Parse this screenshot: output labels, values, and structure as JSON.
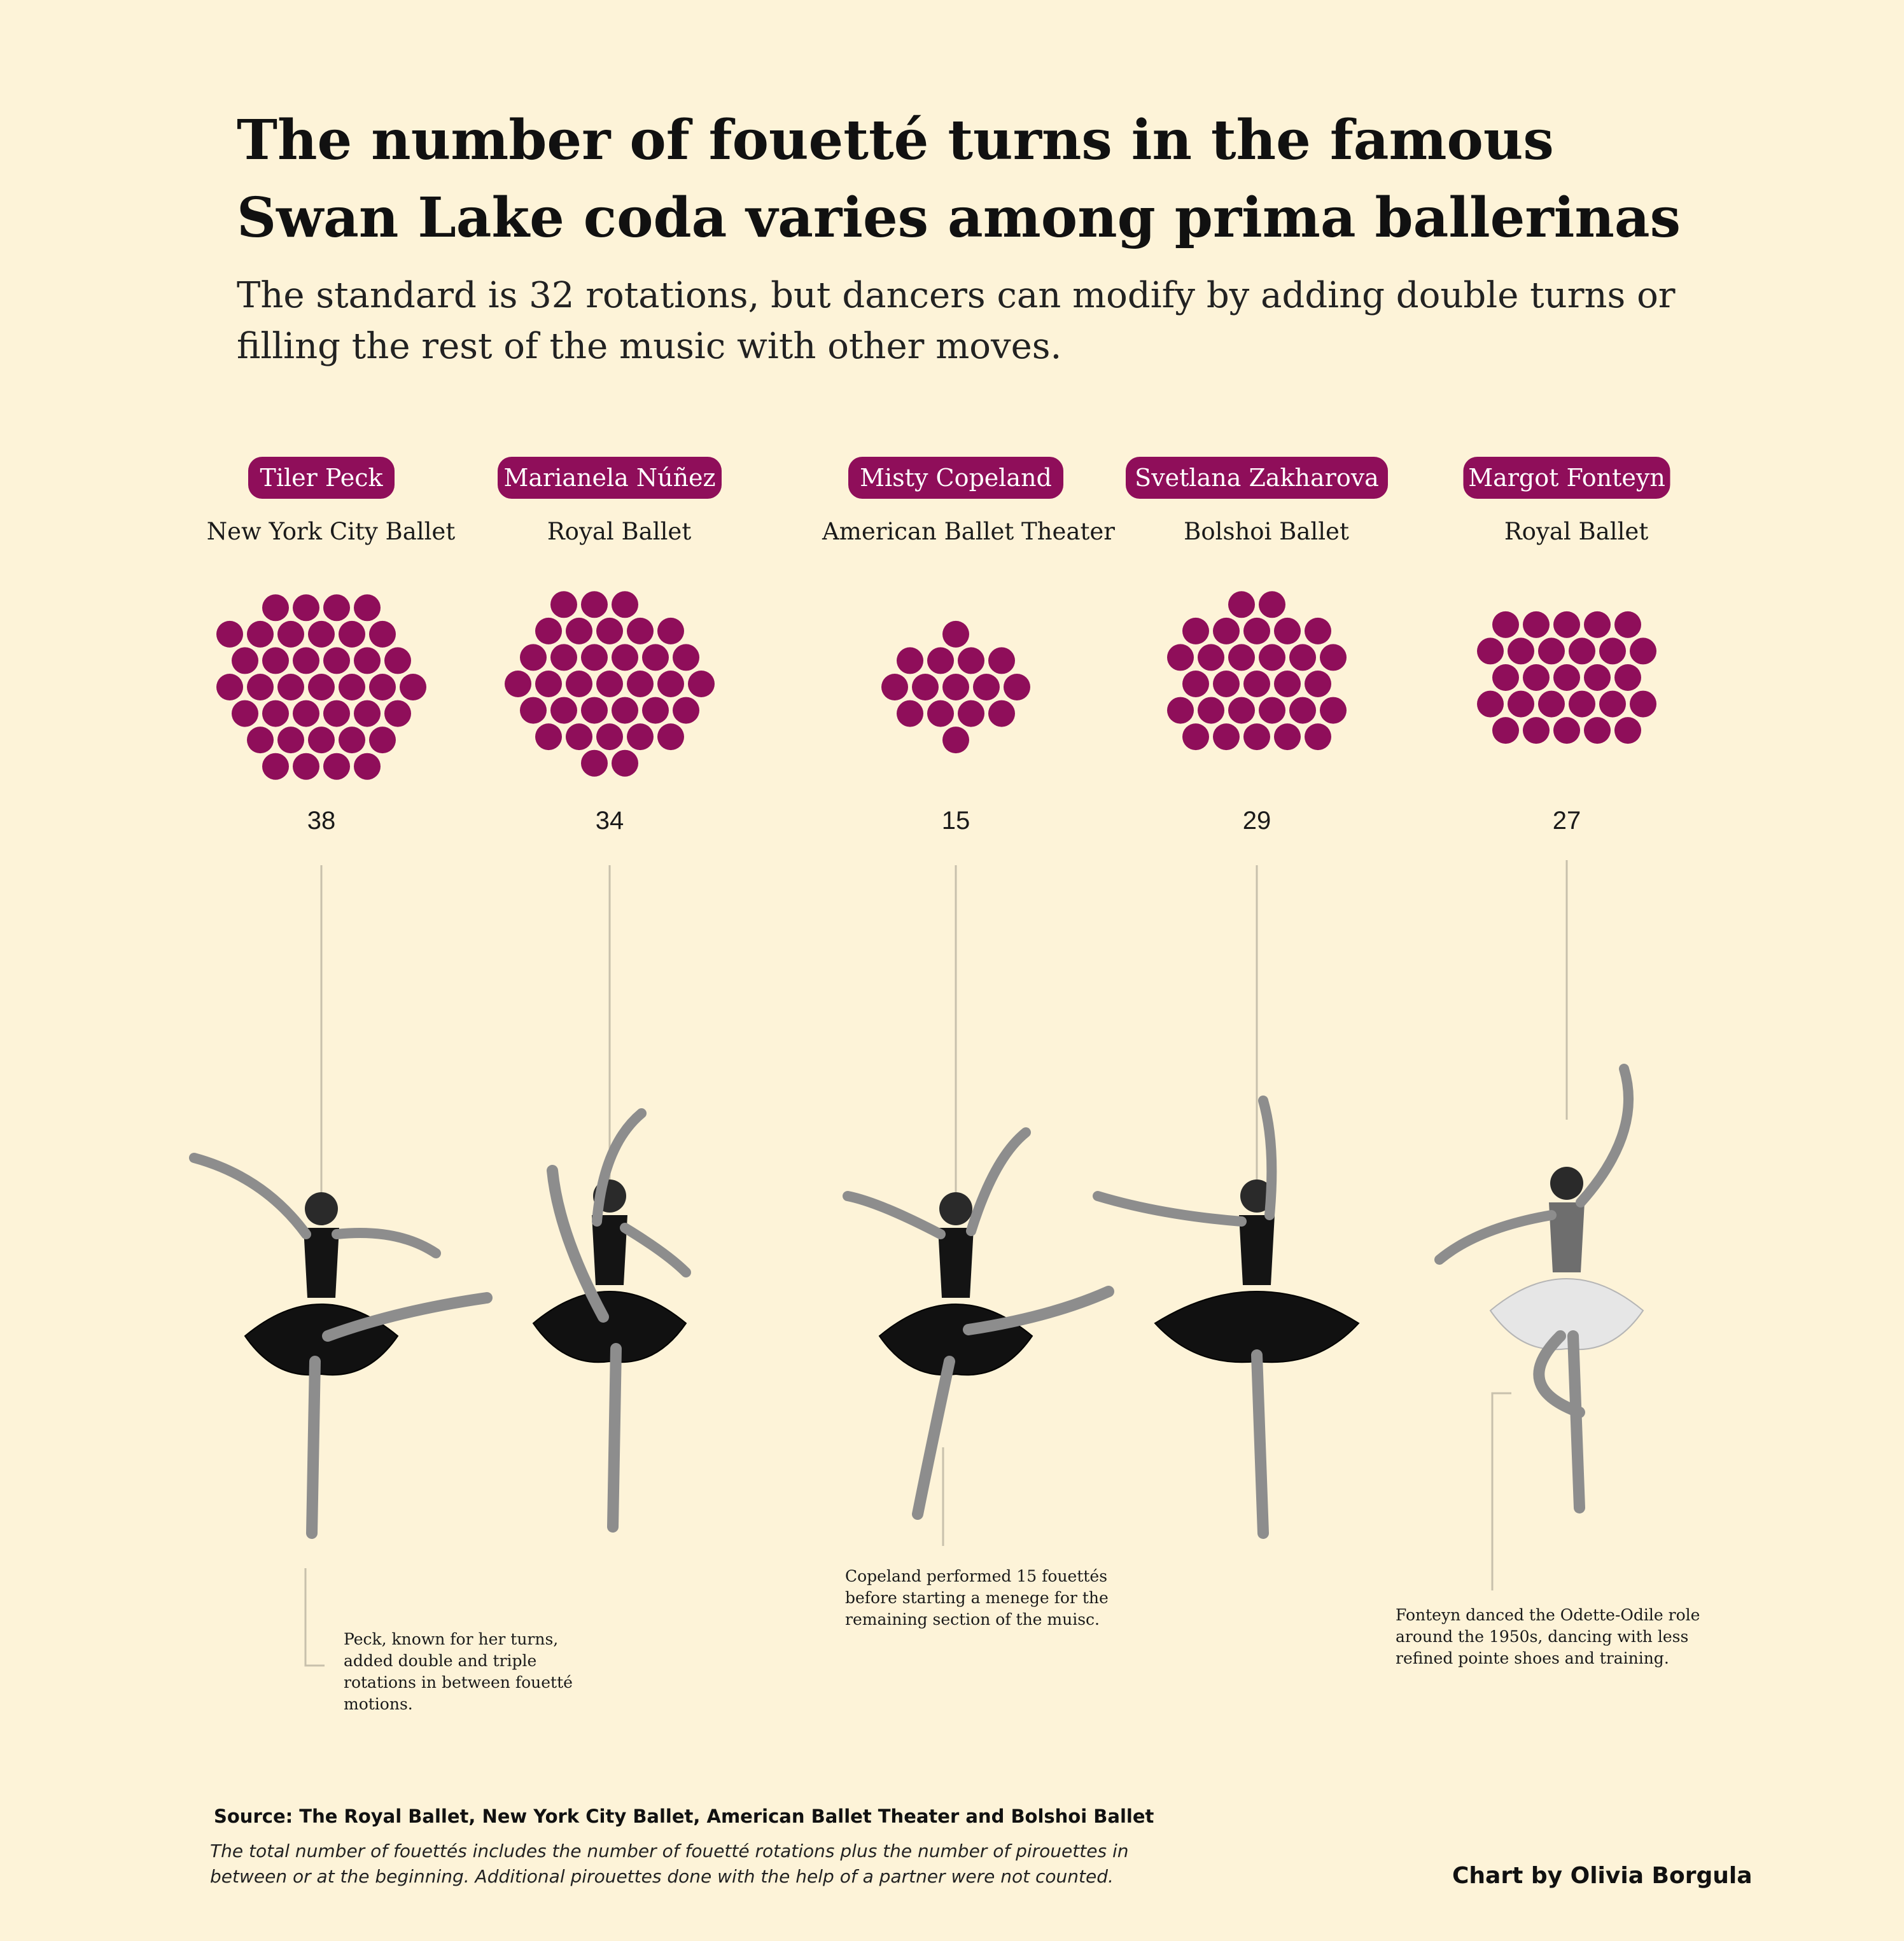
{
  "title": "The number of fouetté turns in the famous Swan Lake coda varies among prima ballerinas",
  "subtitle": "The standard is 32 rotations, but dancers can modify by adding double turns or filling the rest of the music with other moves.",
  "colors": {
    "background": "#fdf3d8",
    "dot": "#8f0e5a",
    "pill": "#8f0e5a",
    "leader": "#c8c0ac"
  },
  "chart_data": {
    "type": "unit-dot",
    "unit": "one dot per fouetté turn",
    "categories": [
      "Tiler Peck",
      "Marianela Núñez",
      "Misty Copeland",
      "Svetlana Zakharova",
      "Margot Fonteyn"
    ],
    "series": [
      {
        "values": [
          38,
          34,
          15,
          29,
          27
        ]
      }
    ],
    "dancers": [
      {
        "name": "Tiler Peck",
        "company": "New York City Ballet",
        "fouettes": 38,
        "count_label": "38",
        "photo": "ballerina-photo",
        "annotation": [
          "Peck, known for her turns,",
          "added double and triple",
          "rotations in between fouetté",
          "motions."
        ]
      },
      {
        "name": "Marianela Núñez",
        "company": "Royal  Ballet",
        "fouettes": 34,
        "count_label": "34",
        "photo": "ballerina-photo",
        "annotation": []
      },
      {
        "name": "Misty Copeland",
        "company": "American Ballet Theater",
        "fouettes": 15,
        "count_label": "15",
        "photo": "ballerina-photo",
        "annotation": [
          "Copeland performed 15 fouettés",
          "before starting a menege for the",
          "remaining section of the muisc."
        ]
      },
      {
        "name": "Svetlana Zakharova",
        "company": "Bolshoi Ballet",
        "fouettes": 29,
        "count_label": "29",
        "photo": "ballerina-photo",
        "annotation": []
      },
      {
        "name": "Margot Fonteyn",
        "company": "Royal Ballet",
        "fouettes": 27,
        "count_label": "27",
        "photo": "ballerina-photo",
        "annotation": [
          "Fonteyn danced the Odette-Odile role",
          "around the 1950s, dancing with less",
          "refined pointe shoes and training."
        ]
      }
    ]
  },
  "source": "Source: The Royal Ballet, New York City Ballet, American Ballet Theater and Bolshoi Ballet",
  "footnote": "The total number of fouettés includes the number of fouetté rotations plus the number of pirouettes in between or at the beginning. Additional pirouettes done with the help of a partner were not counted.",
  "credit": "Chart by Olivia Borgula"
}
